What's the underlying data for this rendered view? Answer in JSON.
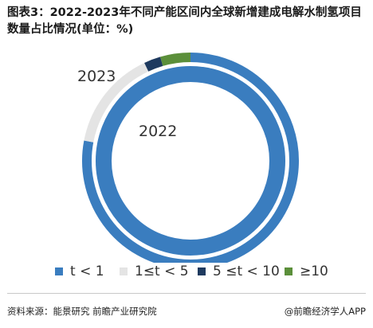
{
  "title": "图表3：2022-2023年不同产能区间内全球新增建成电解水制氢项目数量占比情况(单位：%)",
  "source": "资料来源：能景研究 前瞻产业研究院",
  "brand": "@前瞻经济学人APP",
  "chart_data": {
    "type": "donut",
    "unit": "%",
    "categories": [
      "t < 1",
      "1≤t < 5",
      "5 ≤t < 10",
      "≥10"
    ],
    "colors": [
      "#3a7dbf",
      "#e4e4e4",
      "#1e3a5f",
      "#5b8f3a"
    ],
    "rings": [
      {
        "label": "2023",
        "position": "outer",
        "values": [
          78,
          15,
          2.5,
          4.5
        ]
      },
      {
        "label": "2022",
        "position": "inner",
        "values": [
          100,
          0,
          0,
          0
        ]
      }
    ],
    "legend_position": "bottom"
  }
}
